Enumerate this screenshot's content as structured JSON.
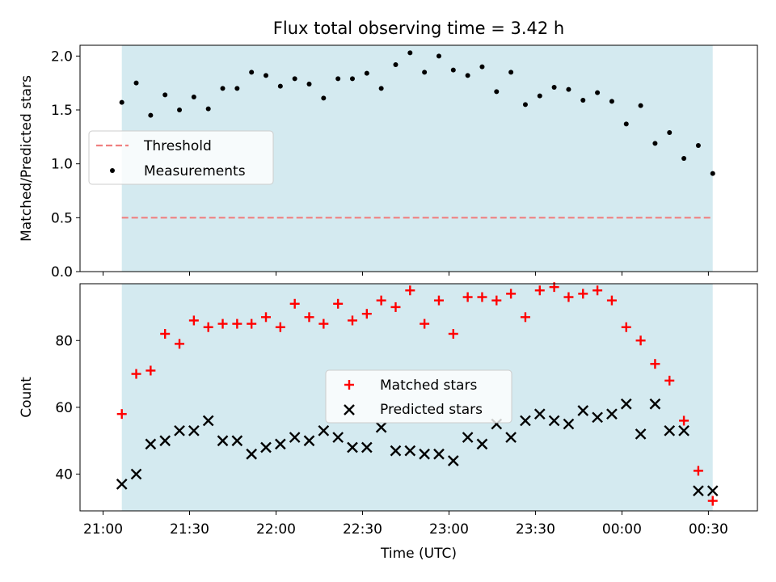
{
  "chart_data": {
    "title": "Flux total observing time = 3.42 h",
    "shaded_color": "#d4eaf0",
    "panels": [
      {
        "type": "scatter",
        "ylabel": "Matched/Predicted stars",
        "ylim": [
          0,
          2.1
        ],
        "yticks": [
          0.0,
          0.5,
          1.0,
          1.5,
          2.0
        ],
        "ytick_labels": [
          "0.0",
          "0.5",
          "1.0",
          "1.5",
          "2.0"
        ],
        "threshold": {
          "name": "Threshold",
          "value": 0.5,
          "color": "#f08080",
          "style": "dashed"
        },
        "series": [
          {
            "name": "Measurements",
            "marker": "dot",
            "color": "#000000",
            "values": [
              1.57,
              1.75,
              1.45,
              1.64,
              1.5,
              1.62,
              1.51,
              1.7,
              1.7,
              1.85,
              1.82,
              1.72,
              1.79,
              1.74,
              1.61,
              1.79,
              1.79,
              1.84,
              1.7,
              1.92,
              2.03,
              1.85,
              2.0,
              1.87,
              1.82,
              1.9,
              1.67,
              1.85,
              1.55,
              1.63,
              1.71,
              1.69,
              1.59,
              1.66,
              1.58,
              1.37,
              1.54,
              1.19,
              1.29,
              1.05,
              1.17,
              0.91
            ]
          }
        ],
        "legend_position": "center-left"
      },
      {
        "type": "scatter",
        "ylabel": "Count",
        "ylim": [
          29,
          97
        ],
        "yticks": [
          40,
          60,
          80
        ],
        "ytick_labels": [
          "40",
          "60",
          "80"
        ],
        "series": [
          {
            "name": "Matched stars",
            "marker": "plus",
            "color": "#ff0000",
            "values": [
              58,
              70,
              71,
              82,
              79,
              86,
              84,
              85,
              85,
              85,
              87,
              84,
              91,
              87,
              85,
              91,
              86,
              88,
              92,
              90,
              95,
              85,
              92,
              82,
              93,
              93,
              92,
              94,
              87,
              95,
              96,
              93,
              94,
              95,
              92,
              84,
              80,
              73,
              68,
              56,
              41,
              32
            ]
          },
          {
            "name": "Predicted stars",
            "marker": "x",
            "color": "#000000",
            "values": [
              37,
              40,
              49,
              50,
              53,
              53,
              56,
              50,
              50,
              46,
              48,
              49,
              51,
              50,
              53,
              51,
              48,
              48,
              54,
              47,
              47,
              46,
              46,
              44,
              51,
              49,
              55,
              51,
              56,
              58,
              56,
              55,
              59,
              57,
              58,
              61,
              52,
              61,
              53,
              53,
              35,
              35
            ]
          }
        ],
        "legend_position": "center"
      }
    ],
    "x": {
      "label": "Time (UTC)",
      "range_minutes": [
        -8,
        227
      ],
      "tick_minutes": [
        0,
        30,
        60,
        90,
        120,
        150,
        180,
        210
      ],
      "tick_labels": [
        "21:00",
        "21:30",
        "22:00",
        "22:30",
        "23:00",
        "23:30",
        "00:00",
        "00:30"
      ],
      "shaded_span_minutes": [
        6.5,
        211.5
      ],
      "point_minutes": [
        6.5,
        11.5,
        16.5,
        21.5,
        26.5,
        31.5,
        36.5,
        41.5,
        46.5,
        51.5,
        56.5,
        61.5,
        66.5,
        71.5,
        76.5,
        81.5,
        86.5,
        91.5,
        96.5,
        101.5,
        106.5,
        111.5,
        116.5,
        121.5,
        126.5,
        131.5,
        136.5,
        141.5,
        146.5,
        151.5,
        156.5,
        161.5,
        166.5,
        171.5,
        176.5,
        181.5,
        186.5,
        191.5,
        196.5,
        201.5,
        206.5,
        211.5
      ]
    }
  }
}
